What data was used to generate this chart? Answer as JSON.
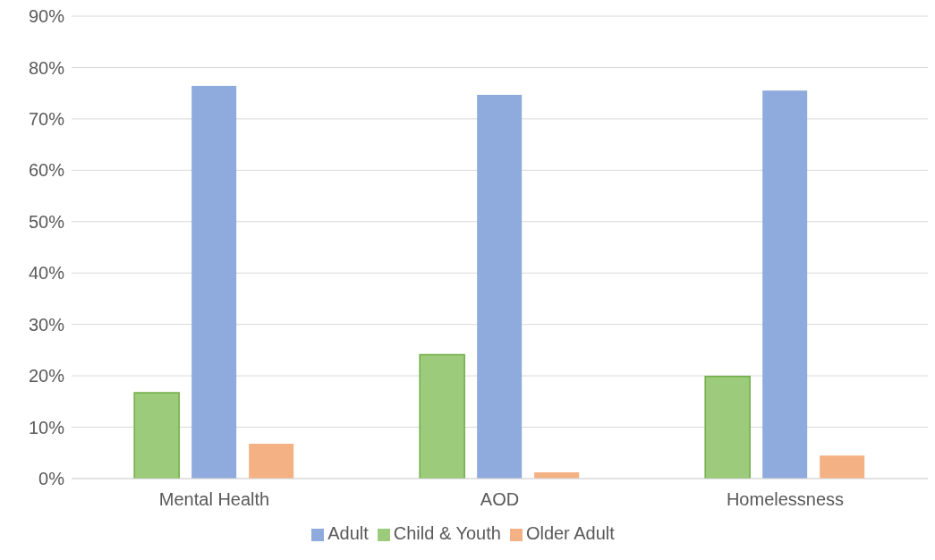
{
  "chart_data": {
    "type": "bar",
    "categories": [
      "Mental Health",
      "AOD",
      "Homelessness"
    ],
    "series": [
      {
        "name": "Child & Youth",
        "color": "#9bcb7b",
        "values": [
          16.7,
          24.1,
          19.9
        ]
      },
      {
        "name": "Adult",
        "color": "#8faadc",
        "values": [
          76.4,
          74.7,
          75.5
        ]
      },
      {
        "name": "Older Adult",
        "color": "#f4b183",
        "values": [
          6.8,
          1.2,
          4.5
        ]
      }
    ],
    "ylim": [
      0,
      90
    ],
    "yticks": [
      {
        "value": 0,
        "label": "0%"
      },
      {
        "value": 10,
        "label": "10%"
      },
      {
        "value": 20,
        "label": "20%"
      },
      {
        "value": 30,
        "label": "30%"
      },
      {
        "value": 40,
        "label": "40%"
      },
      {
        "value": 50,
        "label": "50%"
      },
      {
        "value": 60,
        "label": "60%"
      },
      {
        "value": 70,
        "label": "70%"
      },
      {
        "value": 80,
        "label": "80%"
      },
      {
        "value": 90,
        "label": "90%"
      }
    ],
    "grid": "y",
    "legend": "bottom"
  }
}
